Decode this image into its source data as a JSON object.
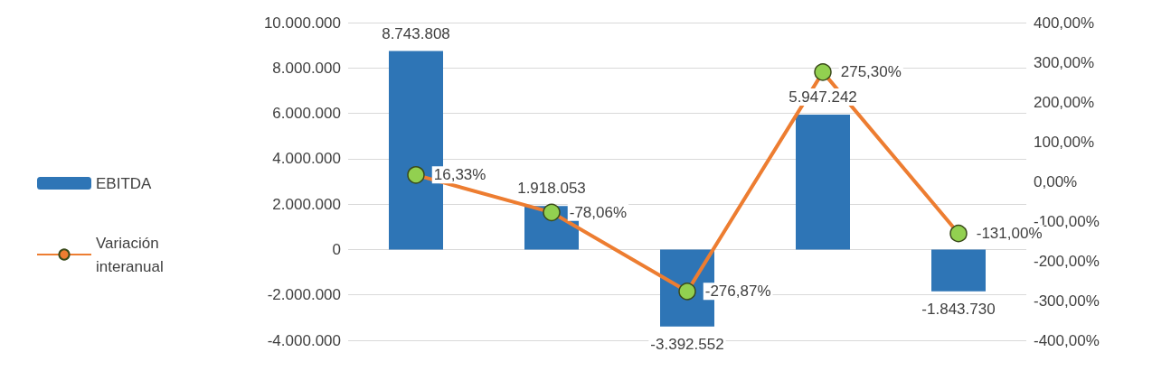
{
  "chart_data": {
    "type": "bar",
    "categories": [
      null,
      null,
      null,
      null,
      null
    ],
    "series": [
      {
        "name": "EBITDA",
        "color": "#2e75b6",
        "values": [
          8743808,
          1918053,
          -3392552,
          5947242,
          -1843730
        ],
        "value_labels": [
          "8.743.808",
          "1.918.053",
          "-3.392.552",
          "5.947.242",
          "-1.843.730"
        ]
      },
      {
        "name": "Variación interanual",
        "type": "line",
        "axis": "y2",
        "color": "#ed7d31",
        "colors": [
          "#92d050",
          "#92d050",
          "#92d050",
          "#92d050",
          "#92d050"
        ],
        "values": [
          16.33,
          -78.06,
          -276.87,
          275.3,
          -131.0
        ],
        "value_labels": [
          "16,33%",
          "-78,06%",
          "-276,87%",
          "275,30%",
          "-131,00%"
        ]
      }
    ],
    "ylim": [
      -4000000,
      10000000
    ],
    "yticks": [
      {
        "value": -4000000,
        "label": "-4.000.000"
      },
      {
        "value": -2000000,
        "label": "-2.000.000"
      },
      {
        "value": 0,
        "label": "0"
      },
      {
        "value": 2000000,
        "label": "2.000.000"
      },
      {
        "value": 4000000,
        "label": "4.000.000"
      },
      {
        "value": 6000000,
        "label": "6.000.000"
      },
      {
        "value": 8000000,
        "label": "8.000.000"
      },
      {
        "value": 10000000,
        "label": "10.000.000"
      }
    ],
    "y2lim": [
      -400,
      400
    ],
    "y2ticks": [
      {
        "value": -400,
        "label": "-400,00%"
      },
      {
        "value": -300,
        "label": "-300,00%"
      },
      {
        "value": -200,
        "label": "-200,00%"
      },
      {
        "value": -100,
        "label": "-100,00%"
      },
      {
        "value": 0,
        "label": "0,00%"
      },
      {
        "value": 100,
        "label": "100,00%"
      },
      {
        "value": 200,
        "label": "200,00%"
      },
      {
        "value": 300,
        "label": "300,00%"
      },
      {
        "value": 400,
        "label": "400,00%"
      }
    ],
    "grid": "y",
    "legend": "left",
    "marker": "circle",
    "line_style": "solid"
  }
}
